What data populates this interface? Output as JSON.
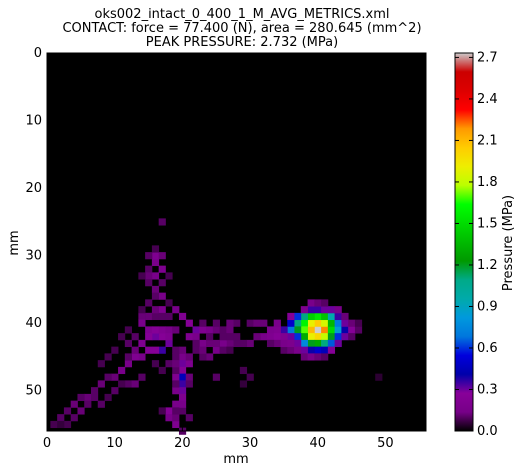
{
  "title_lines": [
    "oks002_intact_0_400_1_M_AVG_METRICS.xml",
    "CONTACT: force = 77.400 (N), area = 280.645 (mm^2)",
    "PEAK PRESSURE: 2.732 (MPa)"
  ],
  "chart_data": {
    "type": "heatmap",
    "xlabel": "mm",
    "ylabel": "mm",
    "colorbar_label": "Pressure (MPa)",
    "xlim": [
      0,
      56
    ],
    "ylim": [
      56,
      0
    ],
    "x_ticks": [
      0,
      10,
      20,
      30,
      40,
      50
    ],
    "y_ticks": [
      0,
      10,
      20,
      30,
      40,
      50
    ],
    "color_range": [
      0.0,
      2.732
    ],
    "colorbar_ticks": [
      "0.0",
      "0.3",
      "0.6",
      "0.9",
      "1.2",
      "1.5",
      "1.8",
      "2.1",
      "2.4",
      "2.7"
    ],
    "colormap": "nipy_spectral",
    "background_color": "#000000",
    "cell_size_mm": 1,
    "peak_pressure": 2.732,
    "cells": [
      [
        40,
        41,
        2.732
      ],
      [
        41,
        41,
        2.2
      ],
      [
        39,
        41,
        2.1
      ],
      [
        40,
        40,
        2.05
      ],
      [
        40,
        42,
        2.0
      ],
      [
        39,
        40,
        1.9
      ],
      [
        41,
        40,
        1.85
      ],
      [
        39,
        42,
        1.9
      ],
      [
        41,
        42,
        1.8
      ],
      [
        38,
        40,
        1.6
      ],
      [
        38,
        41,
        1.7
      ],
      [
        42,
        41,
        1.5
      ],
      [
        40,
        39,
        1.55
      ],
      [
        39,
        39,
        1.45
      ],
      [
        41,
        39,
        1.4
      ],
      [
        40,
        43,
        1.3
      ],
      [
        39,
        43,
        1.2
      ],
      [
        41,
        43,
        1.1
      ],
      [
        38,
        42,
        1.3
      ],
      [
        42,
        42,
        1.2
      ],
      [
        42,
        40,
        1.35
      ],
      [
        37,
        40,
        1.1
      ],
      [
        37,
        41,
        1.2
      ],
      [
        38,
        39,
        1.1
      ],
      [
        43,
        41,
        0.85
      ],
      [
        42,
        39,
        0.95
      ],
      [
        36,
        41,
        0.7
      ],
      [
        43,
        40,
        0.7
      ],
      [
        43,
        42,
        0.6
      ],
      [
        38,
        43,
        0.75
      ],
      [
        42,
        43,
        0.65
      ],
      [
        37,
        39,
        0.6
      ],
      [
        36,
        40,
        0.5
      ],
      [
        40,
        44,
        0.5
      ],
      [
        39,
        44,
        0.4
      ],
      [
        41,
        44,
        0.45
      ],
      [
        44,
        41,
        0.4
      ],
      [
        35,
        41,
        0.35
      ],
      [
        37,
        42,
        0.6
      ],
      [
        36,
        42,
        0.3
      ],
      [
        43,
        39,
        0.35
      ],
      [
        42,
        38,
        0.3
      ],
      [
        39,
        38,
        0.35
      ],
      [
        40,
        38,
        0.35
      ],
      [
        41,
        38,
        0.3
      ],
      [
        44,
        42,
        0.3
      ],
      [
        43,
        43,
        0.3
      ],
      [
        37,
        43,
        0.3
      ],
      [
        36,
        39,
        0.25
      ],
      [
        44,
        40,
        0.3
      ],
      [
        45,
        41,
        0.25
      ],
      [
        38,
        44,
        0.3
      ],
      [
        42,
        44,
        0.25
      ],
      [
        34,
        41,
        0.2
      ],
      [
        33,
        41,
        0.18
      ],
      [
        32,
        42,
        0.15
      ],
      [
        33,
        42,
        0.2
      ],
      [
        34,
        42,
        0.25
      ],
      [
        35,
        42,
        0.2
      ],
      [
        31,
        42,
        0.12
      ],
      [
        30,
        43,
        0.12
      ],
      [
        29,
        43,
        0.1
      ],
      [
        28,
        43,
        0.1
      ],
      [
        27,
        43,
        0.12
      ],
      [
        26,
        43,
        0.15
      ],
      [
        25,
        44,
        0.15
      ],
      [
        24,
        45,
        0.12
      ],
      [
        23,
        45,
        0.1
      ],
      [
        34,
        40,
        0.15
      ],
      [
        32,
        40,
        0.12
      ],
      [
        20,
        45,
        0.15
      ],
      [
        20,
        46,
        0.3
      ],
      [
        21,
        46,
        0.2
      ],
      [
        20,
        47,
        0.25
      ],
      [
        20,
        48,
        0.45
      ],
      [
        19,
        48,
        0.2
      ],
      [
        20,
        49,
        0.35
      ],
      [
        20,
        50,
        0.3
      ],
      [
        19,
        50,
        0.15
      ],
      [
        20,
        51,
        0.2
      ],
      [
        19,
        52,
        0.15
      ],
      [
        18,
        53,
        0.25
      ],
      [
        18,
        54,
        0.15
      ],
      [
        19,
        55,
        0.2
      ],
      [
        17,
        44,
        0.35
      ],
      [
        16,
        44,
        0.25
      ],
      [
        18,
        43,
        0.3
      ],
      [
        17,
        42,
        0.25
      ],
      [
        16,
        42,
        0.3
      ],
      [
        15,
        41,
        0.2
      ],
      [
        16,
        41,
        0.25
      ],
      [
        17,
        41,
        0.2
      ],
      [
        15,
        42,
        0.25
      ],
      [
        14,
        43,
        0.2
      ],
      [
        15,
        44,
        0.25
      ],
      [
        14,
        45,
        0.15
      ],
      [
        13,
        45,
        0.2
      ],
      [
        12,
        46,
        0.15
      ],
      [
        11,
        47,
        0.15
      ],
      [
        10,
        48,
        0.12
      ],
      [
        9,
        48,
        0.1
      ],
      [
        8,
        49,
        0.12
      ],
      [
        7,
        50,
        0.1
      ],
      [
        6,
        51,
        0.12
      ],
      [
        5,
        51,
        0.1
      ],
      [
        4,
        52,
        0.12
      ],
      [
        3,
        53,
        0.1
      ],
      [
        2,
        54,
        0.1
      ],
      [
        1,
        55,
        0.08
      ],
      [
        18,
        41,
        0.15
      ],
      [
        19,
        41,
        0.12
      ],
      [
        18,
        42,
        0.2
      ],
      [
        14,
        39,
        0.12
      ],
      [
        14,
        40,
        0.15
      ],
      [
        15,
        39,
        0.1
      ],
      [
        17,
        38,
        0.2
      ],
      [
        19,
        38,
        0.15
      ],
      [
        20,
        39,
        0.2
      ],
      [
        21,
        40,
        0.25
      ],
      [
        22,
        41,
        0.3
      ],
      [
        21,
        42,
        0.2
      ],
      [
        22,
        42,
        0.15
      ],
      [
        23,
        41,
        0.2
      ],
      [
        24,
        41,
        0.15
      ],
      [
        25,
        41,
        0.12
      ],
      [
        26,
        41,
        0.1
      ],
      [
        27,
        41,
        0.12
      ],
      [
        28,
        42,
        0.1
      ],
      [
        17,
        36,
        0.15
      ],
      [
        16,
        35,
        0.12
      ],
      [
        17,
        34,
        0.1
      ],
      [
        16,
        33,
        0.15
      ],
      [
        17,
        32,
        0.2
      ],
      [
        16,
        31,
        0.15
      ],
      [
        16,
        30,
        0.2
      ],
      [
        17,
        30,
        0.12
      ],
      [
        15,
        32,
        0.1
      ],
      [
        15,
        33,
        0.12
      ],
      [
        15,
        34,
        0.1
      ],
      [
        16,
        36,
        0.1
      ],
      [
        17,
        25,
        0.1
      ],
      [
        15,
        39,
        0.12
      ],
      [
        16,
        39,
        0.1
      ],
      [
        18,
        39,
        0.1
      ],
      [
        23,
        43,
        0.15
      ],
      [
        24,
        43,
        0.12
      ],
      [
        22,
        43,
        0.1
      ],
      [
        25,
        43,
        0.12
      ],
      [
        26,
        44,
        0.1
      ],
      [
        27,
        44,
        0.08
      ],
      [
        22,
        44,
        0.1
      ],
      [
        23,
        44,
        0.12
      ],
      [
        12,
        49,
        0.1
      ],
      [
        11,
        49,
        0.08
      ],
      [
        10,
        50,
        0.1
      ],
      [
        9,
        51,
        0.08
      ],
      [
        8,
        52,
        0.1
      ],
      [
        14,
        48,
        0.1
      ],
      [
        13,
        49,
        0.12
      ],
      [
        30,
        40,
        0.1
      ],
      [
        31,
        40,
        0.12
      ],
      [
        28,
        40,
        0.1
      ],
      [
        27,
        40,
        0.12
      ],
      [
        25,
        40,
        0.1
      ],
      [
        12,
        41,
        0.08
      ],
      [
        11,
        42,
        0.08
      ],
      [
        13,
        42,
        0.1
      ],
      [
        12,
        43,
        0.1
      ],
      [
        10,
        44,
        0.08
      ],
      [
        9,
        45,
        0.08
      ],
      [
        8,
        46,
        0.08
      ],
      [
        25,
        48,
        0.1
      ],
      [
        35,
        44,
        0.1
      ],
      [
        36,
        44,
        0.12
      ],
      [
        37,
        44,
        0.15
      ],
      [
        34,
        43,
        0.12
      ],
      [
        35,
        43,
        0.15
      ],
      [
        36,
        43,
        0.18
      ],
      [
        33,
        43,
        0.1
      ],
      [
        45,
        40,
        0.12
      ],
      [
        45,
        42,
        0.1
      ],
      [
        46,
        41,
        0.1
      ],
      [
        23,
        40,
        0.1
      ],
      [
        24,
        42,
        0.1
      ],
      [
        14,
        33,
        0.08
      ],
      [
        15,
        30,
        0.1
      ],
      [
        16,
        29,
        0.08
      ],
      [
        18,
        33,
        0.08
      ],
      [
        39,
        37,
        0.15
      ],
      [
        40,
        37,
        0.12
      ],
      [
        41,
        37,
        0.1
      ],
      [
        38,
        38,
        0.2
      ],
      [
        43,
        38,
        0.15
      ],
      [
        44,
        39,
        0.12
      ],
      [
        46,
        40,
        0.08
      ],
      [
        38,
        45,
        0.12
      ],
      [
        39,
        45,
        0.15
      ],
      [
        40,
        45,
        0.12
      ],
      [
        41,
        45,
        0.1
      ],
      [
        16,
        38,
        0.12
      ],
      [
        17,
        39,
        0.1
      ],
      [
        18,
        37,
        0.08
      ],
      [
        15,
        37,
        0.1
      ],
      [
        14,
        38,
        0.08
      ],
      [
        19,
        47,
        0.1
      ],
      [
        21,
        48,
        0.12
      ],
      [
        21,
        49,
        0.1
      ],
      [
        20,
        53,
        0.1
      ],
      [
        19,
        54,
        0.12
      ],
      [
        20,
        56,
        0.1
      ],
      [
        17,
        53,
        0.08
      ],
      [
        21,
        54,
        0.1
      ],
      [
        17,
        47,
        0.08
      ],
      [
        18,
        46,
        0.1
      ],
      [
        16,
        46,
        0.08
      ],
      [
        49,
        48,
        0.05
      ],
      [
        30,
        48,
        0.08
      ],
      [
        29,
        49,
        0.06
      ],
      [
        29,
        47,
        0.08
      ],
      [
        21,
        45,
        0.12
      ],
      [
        26,
        42,
        0.1
      ],
      [
        27,
        42,
        0.1
      ],
      [
        13,
        44,
        0.12
      ],
      [
        12,
        45,
        0.1
      ],
      [
        4,
        54,
        0.1
      ],
      [
        5,
        53,
        0.12
      ],
      [
        6,
        52,
        0.1
      ],
      [
        7,
        51,
        0.1
      ],
      [
        3,
        55,
        0.08
      ],
      [
        2,
        55,
        0.06
      ],
      [
        20,
        44,
        0.12
      ],
      [
        19,
        44,
        0.1
      ],
      [
        19,
        45,
        0.1
      ],
      [
        19,
        46,
        0.12
      ],
      [
        19,
        49,
        0.1
      ],
      [
        20,
        52,
        0.15
      ],
      [
        19,
        53,
        0.1
      ]
    ]
  }
}
